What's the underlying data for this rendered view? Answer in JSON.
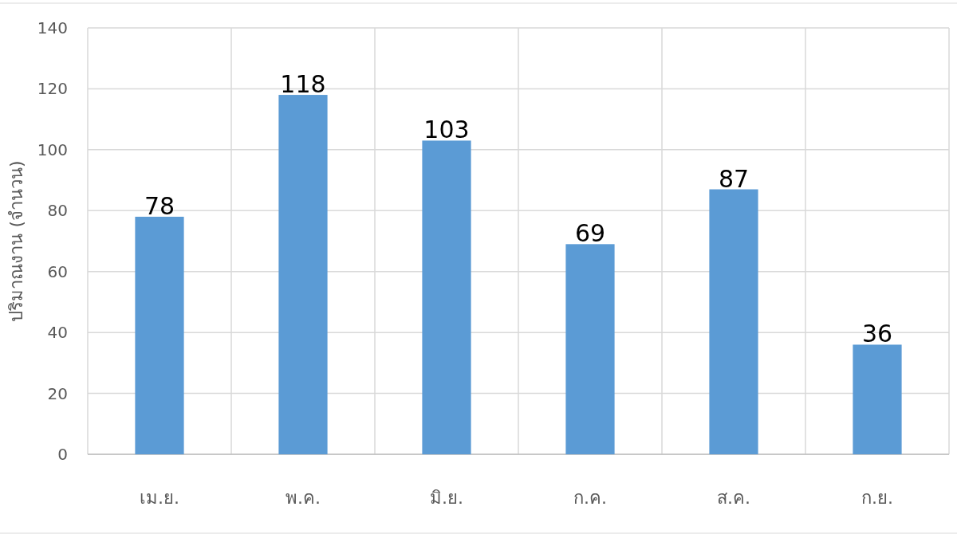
{
  "chart_data": {
    "type": "bar",
    "ylabel": "ปริมาณงาน (จำนวน)",
    "categories": [
      "เม.ย.",
      "พ.ค.",
      "มิ.ย.",
      "ก.ค.",
      "ส.ค.",
      "ก.ย."
    ],
    "values": [
      78,
      118,
      103,
      69,
      87,
      36
    ],
    "color": "#5b9bd5",
    "ylim": [
      0,
      140
    ],
    "yticks": [
      0,
      20,
      40,
      60,
      80,
      100,
      120,
      140
    ],
    "grid": true,
    "data_labels": true
  }
}
